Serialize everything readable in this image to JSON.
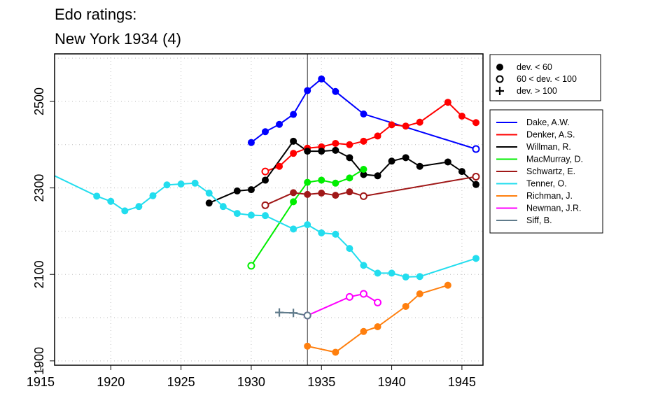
{
  "chart_data": {
    "type": "line",
    "title": "Edo ratings:",
    "subtitle": "New York 1934 (4)",
    "xlim": [
      1916,
      1946.5
    ],
    "ylim": [
      1890,
      2610
    ],
    "xticks": [
      1915,
      1920,
      1925,
      1930,
      1935,
      1940,
      1945
    ],
    "yticks": [
      1900,
      2100,
      2300,
      2500
    ],
    "grid": true,
    "reference_line_x": 1934,
    "marker_legend": [
      {
        "marker": "filled",
        "label": "dev. < 60"
      },
      {
        "marker": "open",
        "label": "60 < dev. < 100"
      },
      {
        "marker": "plus",
        "label": "dev. > 100"
      }
    ],
    "legend_position": "right",
    "series": [
      {
        "name": "Dake, A.W.",
        "color": "#0000ff",
        "points": [
          {
            "x": 1930,
            "y": 2405,
            "m": "filled"
          },
          {
            "x": 1931,
            "y": 2430,
            "m": "filled"
          },
          {
            "x": 1932,
            "y": 2447,
            "m": "filled"
          },
          {
            "x": 1933,
            "y": 2470,
            "m": "filled"
          },
          {
            "x": 1934,
            "y": 2525,
            "m": "filled"
          },
          {
            "x": 1935,
            "y": 2552,
            "m": "filled"
          },
          {
            "x": 1936,
            "y": 2523,
            "m": "filled"
          },
          {
            "x": 1938,
            "y": 2471,
            "m": "filled"
          },
          {
            "x": 1946,
            "y": 2390,
            "m": "open"
          }
        ]
      },
      {
        "name": "Denker, A.S.",
        "color": "#ff0000",
        "points": [
          {
            "x": 1931,
            "y": 2338,
            "m": "open"
          },
          {
            "x": 1932,
            "y": 2350,
            "m": "filled"
          },
          {
            "x": 1933,
            "y": 2380,
            "m": "filled"
          },
          {
            "x": 1934,
            "y": 2392,
            "m": "filled"
          },
          {
            "x": 1935,
            "y": 2395,
            "m": "filled"
          },
          {
            "x": 1936,
            "y": 2403,
            "m": "filled"
          },
          {
            "x": 1937,
            "y": 2400,
            "m": "filled"
          },
          {
            "x": 1938,
            "y": 2408,
            "m": "filled"
          },
          {
            "x": 1939,
            "y": 2420,
            "m": "filled"
          },
          {
            "x": 1940,
            "y": 2446,
            "m": "filled"
          },
          {
            "x": 1941,
            "y": 2443,
            "m": "filled"
          },
          {
            "x": 1942,
            "y": 2452,
            "m": "filled"
          },
          {
            "x": 1944,
            "y": 2498,
            "m": "filled"
          },
          {
            "x": 1945,
            "y": 2466,
            "m": "filled"
          },
          {
            "x": 1946,
            "y": 2451,
            "m": "filled"
          }
        ]
      },
      {
        "name": "Willman, R.",
        "color": "#000000",
        "points": [
          {
            "x": 1927,
            "y": 2265,
            "m": "filled"
          },
          {
            "x": 1929,
            "y": 2293,
            "m": "filled"
          },
          {
            "x": 1930,
            "y": 2296,
            "m": "filled"
          },
          {
            "x": 1931,
            "y": 2318,
            "m": "filled"
          },
          {
            "x": 1933,
            "y": 2408,
            "m": "filled"
          },
          {
            "x": 1934,
            "y": 2385,
            "m": "filled"
          },
          {
            "x": 1935,
            "y": 2385,
            "m": "filled"
          },
          {
            "x": 1936,
            "y": 2387,
            "m": "filled"
          },
          {
            "x": 1937,
            "y": 2370,
            "m": "filled"
          },
          {
            "x": 1938,
            "y": 2331,
            "m": "filled"
          },
          {
            "x": 1939,
            "y": 2328,
            "m": "filled"
          },
          {
            "x": 1940,
            "y": 2362,
            "m": "filled"
          },
          {
            "x": 1941,
            "y": 2370,
            "m": "filled"
          },
          {
            "x": 1942,
            "y": 2350,
            "m": "filled"
          },
          {
            "x": 1944,
            "y": 2360,
            "m": "filled"
          },
          {
            "x": 1945,
            "y": 2338,
            "m": "filled"
          },
          {
            "x": 1946,
            "y": 2308,
            "m": "filled"
          }
        ]
      },
      {
        "name": "MacMurray, D.",
        "color": "#00ee00",
        "points": [
          {
            "x": 1930,
            "y": 2120,
            "m": "open"
          },
          {
            "x": 1933,
            "y": 2268,
            "m": "filled"
          },
          {
            "x": 1934,
            "y": 2313,
            "m": "filled"
          },
          {
            "x": 1935,
            "y": 2318,
            "m": "filled"
          },
          {
            "x": 1936,
            "y": 2311,
            "m": "filled"
          },
          {
            "x": 1937,
            "y": 2323,
            "m": "filled"
          },
          {
            "x": 1938,
            "y": 2343,
            "m": "filled"
          }
        ]
      },
      {
        "name": "Schwartz, E.",
        "color": "#a01818",
        "points": [
          {
            "x": 1931,
            "y": 2260,
            "m": "open"
          },
          {
            "x": 1933,
            "y": 2289,
            "m": "filled"
          },
          {
            "x": 1934,
            "y": 2285,
            "m": "filled"
          },
          {
            "x": 1935,
            "y": 2288,
            "m": "filled"
          },
          {
            "x": 1936,
            "y": 2283,
            "m": "filled"
          },
          {
            "x": 1937,
            "y": 2291,
            "m": "filled"
          },
          {
            "x": 1938,
            "y": 2281,
            "m": "open"
          },
          {
            "x": 1946,
            "y": 2326,
            "m": "open"
          }
        ]
      },
      {
        "name": "Tenner, O.",
        "color": "#22ddee",
        "points": [
          {
            "x": 1916,
            "y": 2328,
            "m": "none"
          },
          {
            "x": 1919,
            "y": 2281,
            "m": "filled"
          },
          {
            "x": 1920,
            "y": 2269,
            "m": "filled"
          },
          {
            "x": 1921,
            "y": 2247,
            "m": "filled"
          },
          {
            "x": 1922,
            "y": 2257,
            "m": "filled"
          },
          {
            "x": 1923,
            "y": 2282,
            "m": "filled"
          },
          {
            "x": 1924,
            "y": 2307,
            "m": "filled"
          },
          {
            "x": 1925,
            "y": 2309,
            "m": "filled"
          },
          {
            "x": 1926,
            "y": 2311,
            "m": "filled"
          },
          {
            "x": 1927,
            "y": 2288,
            "m": "filled"
          },
          {
            "x": 1928,
            "y": 2257,
            "m": "filled"
          },
          {
            "x": 1929,
            "y": 2241,
            "m": "filled"
          },
          {
            "x": 1930,
            "y": 2237,
            "m": "filled"
          },
          {
            "x": 1931,
            "y": 2236,
            "m": "filled"
          },
          {
            "x": 1933,
            "y": 2205,
            "m": "filled"
          },
          {
            "x": 1934,
            "y": 2215,
            "m": "filled"
          },
          {
            "x": 1935,
            "y": 2196,
            "m": "filled"
          },
          {
            "x": 1936,
            "y": 2193,
            "m": "filled"
          },
          {
            "x": 1937,
            "y": 2160,
            "m": "filled"
          },
          {
            "x": 1938,
            "y": 2121,
            "m": "filled"
          },
          {
            "x": 1939,
            "y": 2103,
            "m": "filled"
          },
          {
            "x": 1940,
            "y": 2103,
            "m": "filled"
          },
          {
            "x": 1941,
            "y": 2094,
            "m": "filled"
          },
          {
            "x": 1942,
            "y": 2095,
            "m": "filled"
          },
          {
            "x": 1946,
            "y": 2137,
            "m": "filled"
          }
        ]
      },
      {
        "name": "Richman, J.",
        "color": "#ff7f0e",
        "points": [
          {
            "x": 1934,
            "y": 1934,
            "m": "filled"
          },
          {
            "x": 1936,
            "y": 1920,
            "m": "filled"
          },
          {
            "x": 1938,
            "y": 1968,
            "m": "filled"
          },
          {
            "x": 1939,
            "y": 1979,
            "m": "filled"
          },
          {
            "x": 1941,
            "y": 2026,
            "m": "filled"
          },
          {
            "x": 1942,
            "y": 2055,
            "m": "filled"
          },
          {
            "x": 1944,
            "y": 2075,
            "m": "filled"
          }
        ]
      },
      {
        "name": "Newman, J.R.",
        "color": "#ff00ff",
        "points": [
          {
            "x": 1934,
            "y": 2005,
            "m": "open"
          },
          {
            "x": 1937,
            "y": 2048,
            "m": "open"
          },
          {
            "x": 1938,
            "y": 2055,
            "m": "open"
          },
          {
            "x": 1939,
            "y": 2035,
            "m": "open"
          }
        ]
      },
      {
        "name": "Siff, B.",
        "color": "#607b8b",
        "points": [
          {
            "x": 1932,
            "y": 2012,
            "m": "plus"
          },
          {
            "x": 1933,
            "y": 2011,
            "m": "plus"
          },
          {
            "x": 1934,
            "y": 2005,
            "m": "open"
          }
        ]
      }
    ]
  }
}
